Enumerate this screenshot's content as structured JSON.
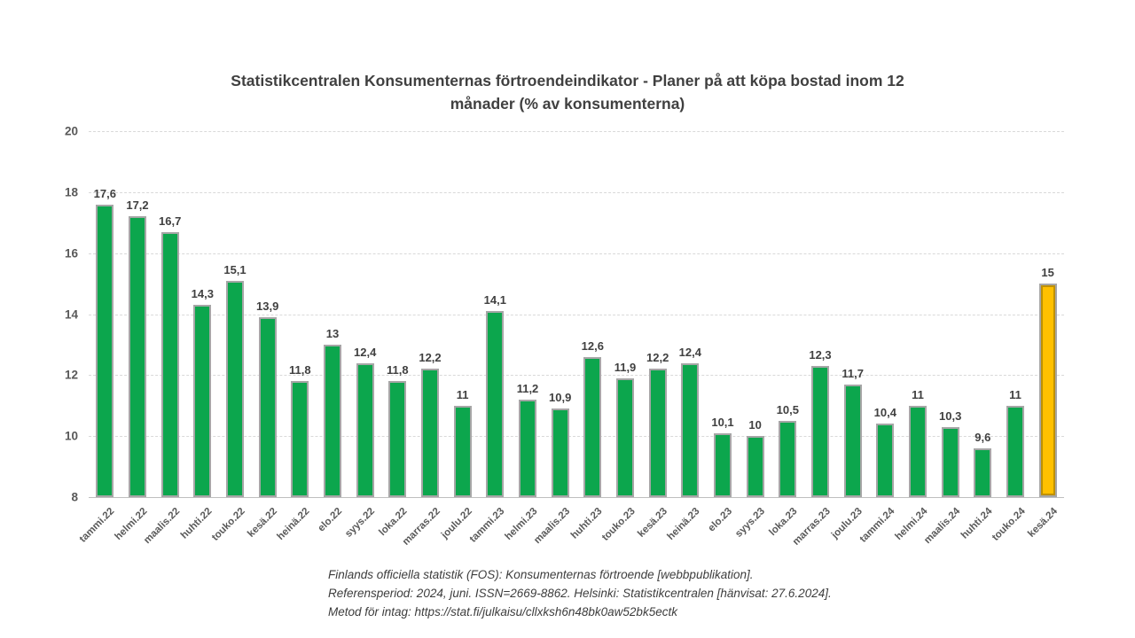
{
  "header": {
    "line1": "Statistikcentralen Konsumenternas förtroendeindikator - Planer på att köpa bostad inom 12",
    "line2": "månader (% av konsumenterna)"
  },
  "chart_data": {
    "type": "bar",
    "title": "Statistikcentralen Konsumenternas förtroendeindikator - Planer på att köpa bostad inom 12 månader (% av konsumenterna)",
    "categories": [
      "tammi.22",
      "helmi.22",
      "maalis.22",
      "huhti.22",
      "touko.22",
      "kesä.22",
      "heinä.22",
      "elo.22",
      "syys.22",
      "loka.22",
      "marras.22",
      "joulu.22",
      "tammi.23",
      "helmi.23",
      "maalis.23",
      "huhti.23",
      "touko.23",
      "kesä.23",
      "heinä.23",
      "elo.23",
      "syys.23",
      "loka.23",
      "marras.23",
      "joulu.23",
      "tammi.24",
      "helmi.24",
      "maalis.24",
      "huhti.24",
      "touko.24",
      "kesä.24"
    ],
    "values": [
      17.6,
      17.2,
      16.7,
      14.3,
      15.1,
      13.9,
      11.8,
      13,
      12.4,
      11.8,
      12.2,
      11,
      14.1,
      11.2,
      10.9,
      12.6,
      11.9,
      12.2,
      12.4,
      10.1,
      10,
      10.5,
      12.3,
      11.7,
      10.4,
      11,
      10.3,
      9.6,
      11,
      15
    ],
    "value_labels": [
      "17,6",
      "17,2",
      "16,7",
      "14,3",
      "15,1",
      "13,9",
      "11,8",
      "13",
      "12,4",
      "11,8",
      "12,2",
      "11",
      "14,1",
      "11,2",
      "10,9",
      "12,6",
      "11,9",
      "12,2",
      "12,4",
      "10,1",
      "10",
      "10,5",
      "12,3",
      "11,7",
      "10,4",
      "11",
      "10,3",
      "9,6",
      "11",
      "15"
    ],
    "xlabel": "",
    "ylabel": "",
    "ylim": [
      8,
      20
    ],
    "y_ticks": [
      20,
      18,
      16,
      14,
      12,
      10,
      8
    ],
    "grid": "horizontal-dashed",
    "legend": "none",
    "bar_color": "#0ca64d",
    "bar_border_color": "#a6a6a6",
    "highlight_index": 29,
    "highlight_color": "#ffc000",
    "highlight_border_color": "#bf9000"
  },
  "footer": {
    "lines": [
      "Finlands officiella statistik (FOS): Konsumenternas förtroende [webbpublikation].",
      "Referensperiod: 2024, juni. ISSN=2669-8862. Helsinki: Statistikcentralen [hänvisat: 27.6.2024].",
      "Metod för intag: https://stat.fi/julkaisu/cllxksh6n48bk0aw52bk5ectk"
    ]
  }
}
